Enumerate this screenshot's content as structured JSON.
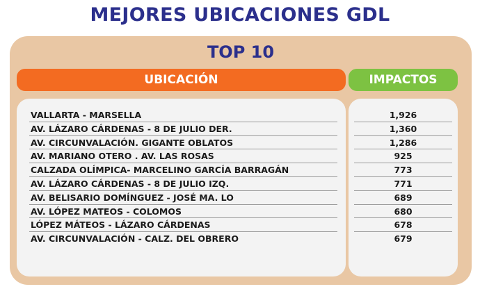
{
  "title": "MEJORES UBICACIONES GDL",
  "subtitle": "TOP 10",
  "headers": {
    "location": "UBICACIÓN",
    "impacts": "IMPACTOS"
  },
  "colors": {
    "title": "#2b2f8c",
    "panel": "#e9c7a4",
    "location_header": "#f36b21",
    "impacts_header": "#7dc242",
    "table_bg": "#f3f3f3"
  },
  "rows": [
    {
      "location": "VALLARTA - MARSELLA",
      "impacts": "1,926"
    },
    {
      "location": "AV. LÁZARO CÁRDENAS - 8 DE JULIO DER.",
      "impacts": "1,360"
    },
    {
      "location": "AV. CIRCUNVALACIÓN. GIGANTE OBLATOS",
      "impacts": "1,286"
    },
    {
      "location": "AV. MARIANO OTERO . AV. LAS ROSAS",
      "impacts": "925"
    },
    {
      "location": "CALZADA OLÍMPICA- MARCELINO GARCÍA BARRAGÁN",
      "impacts": "773"
    },
    {
      "location": "AV. LÁZARO CÁRDENAS - 8 DE JULIO IZQ.",
      "impacts": "771"
    },
    {
      "location": "AV. BELISARIO DOMÍNGUEZ - JOSÉ MA. LO",
      "impacts": "689"
    },
    {
      "location": "AV. LÓPEZ MATEOS - COLOMOS",
      "impacts": "680"
    },
    {
      "location": "LÓPEZ MÁTEOS - LÁZARO CÁRDENAS",
      "impacts": "678"
    },
    {
      "location": "AV. CIRCUNVALACIÓN - CALZ. DEL OBRERO",
      "impacts": "679"
    }
  ]
}
